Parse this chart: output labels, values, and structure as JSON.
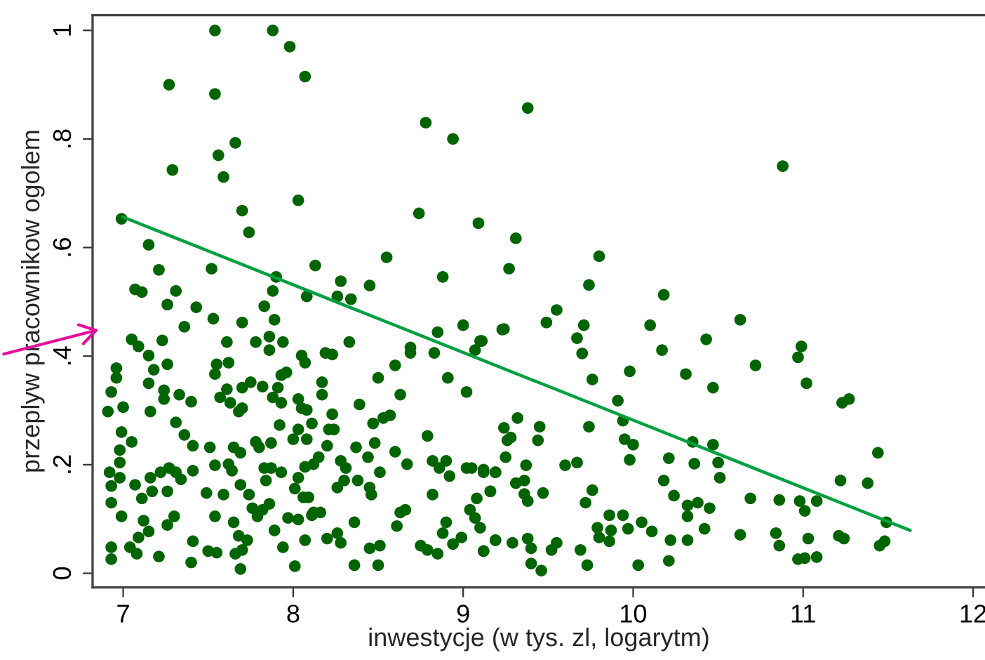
{
  "chart_data": {
    "type": "scatter",
    "xlabel": "inwestycje (w tys. zl, logarytm)",
    "ylabel": "przeplyw pracownikow ogolem",
    "xlim": [
      6.82,
      12.07
    ],
    "ylim": [
      -0.026,
      1.028
    ],
    "xticks": [
      7,
      8,
      9,
      10,
      11,
      12
    ],
    "yticks": [
      {
        "value": 0,
        "label": "0"
      },
      {
        "value": 0.2,
        "label": ".2"
      },
      {
        "value": 0.4,
        "label": ".4"
      },
      {
        "value": 0.6,
        "label": ".6"
      },
      {
        "value": 0.8,
        "label": ".8"
      },
      {
        "value": 1,
        "label": "1"
      }
    ],
    "grid": false,
    "series": [
      {
        "type": "scatter",
        "color": "#006400",
        "marker": "circle",
        "x": [
          6.99,
          7.54,
          7.88,
          7.98,
          8.07,
          7.27,
          7.54,
          7.66,
          7.56,
          7.29,
          7.59,
          8.03,
          7.7,
          7.74,
          7.15,
          8.78,
          8.94,
          8.74,
          9.09,
          8.55,
          8.13,
          7.52,
          7.21,
          8.88,
          7.9,
          7.07,
          7.11,
          7.31,
          7.88,
          8.28,
          8.45,
          8.08,
          8.26,
          8.34,
          7.26,
          7.43,
          7.83,
          9.38,
          10.88,
          9.31,
          9.8,
          9.27,
          9.74,
          10.18,
          9.55,
          9.49,
          9.71,
          10.1,
          10.63,
          9.24,
          10.43,
          10.17,
          10.99,
          10.97,
          10.72,
          10.31,
          10.47,
          11.02,
          11.23,
          11.27,
          9.98,
          9.76,
          9.7,
          9.67,
          9.91,
          9.94,
          9.74,
          9.95,
          10.0,
          10.35,
          10.47,
          9.98,
          10.21,
          10.36,
          10.5,
          10.51,
          10.18,
          9.6,
          9.67,
          11.44,
          11.22,
          11.38,
          11.49,
          11.08,
          10.98,
          11.01,
          10.86,
          10.69,
          10.24,
          10.32,
          10.38,
          10.45,
          10.32,
          10.42,
          10.63,
          10.84,
          10.86,
          11.03,
          11.21,
          11.24,
          11.45,
          11.48,
          10.97,
          11.01,
          11.08,
          10.03,
          10.21,
          10.32,
          10.22,
          10.11,
          10.05,
          9.94,
          9.86,
          9.79,
          9.87,
          9.8,
          9.86,
          9.97,
          9.72,
          9.76,
          9.69,
          9.73,
          9.52,
          9.55,
          9.4,
          9.38,
          9.4,
          9.46,
          9.29,
          9.19,
          9.12,
          9.47,
          9.38,
          9.36,
          9.36,
          9.31,
          9.37,
          9.16,
          9.12,
          9.19,
          9.25,
          9.26,
          9.28,
          9.24,
          9.32,
          9.45,
          9.44,
          9.11,
          7.05,
          7.09,
          7.15,
          7.23,
          6.96,
          6.96,
          6.93,
          6.91,
          7.0,
          7.15,
          7.18,
          7.26,
          7.24,
          7.24,
          7.16,
          7.33,
          7.4,
          7.31,
          7.36,
          7.41,
          6.99,
          7.05,
          6.98,
          6.98,
          6.92,
          6.98,
          6.93,
          6.93,
          7.07,
          7.11,
          7.16,
          7.17,
          7.22,
          7.27,
          7.31,
          7.34,
          7.26,
          7.41,
          6.99,
          7.12,
          7.15,
          7.09,
          7.04,
          7.08,
          6.93,
          6.93,
          7.21,
          7.26,
          7.3,
          7.41,
          7.4,
          7.5,
          7.49,
          7.54,
          7.59,
          7.55,
          7.65,
          7.68,
          7.66,
          7.69,
          7.7,
          7.73,
          7.69,
          7.74,
          7.76,
          7.79,
          7.82,
          7.86,
          7.84,
          7.89,
          7.94,
          7.97,
          8.01,
          8.03,
          8.01,
          8.06,
          8.09,
          8.07,
          8.11,
          8.12,
          8.16,
          8.2,
          8.26,
          8.28,
          8.36,
          8.36,
          8.45,
          8.51,
          8.5,
          8.63,
          8.61,
          8.66,
          8.75,
          8.79,
          8.85,
          8.88,
          8.9,
          8.94,
          8.99,
          8.82,
          9.04,
          9.07,
          9.1,
          9.12,
          9.19,
          9.16,
          9.08,
          7.93,
          8.03,
          8.07,
          8.12,
          8.15,
          8.2,
          8.21,
          8.24,
          8.23,
          8.28,
          8.31,
          8.26,
          8.3,
          8.38,
          8.37,
          8.44,
          8.48,
          8.47,
          8.53,
          8.57,
          8.6,
          8.67,
          8.51,
          8.45,
          8.46,
          8.79,
          8.82,
          8.86,
          8.9,
          8.92,
          9.02,
          9.05,
          9.12,
          9.19,
          7.53,
          7.36,
          7.7,
          7.89,
          7.61,
          7.78,
          7.86,
          7.86,
          7.94,
          8.05,
          8.07,
          8.19,
          8.23,
          8.33,
          7.55,
          7.62,
          7.54,
          7.61,
          7.7,
          7.75,
          7.82,
          7.91,
          7.93,
          7.96,
          7.57,
          7.63,
          7.7,
          7.68,
          7.88,
          7.93,
          8.03,
          8.05,
          8.08,
          8.17,
          8.17,
          8.39,
          8.5,
          8.6,
          8.63,
          8.69,
          8.69,
          8.85,
          8.83,
          8.91,
          9.0,
          9.02,
          9.1,
          9.07,
          9.23,
          7.78,
          7.8,
          7.87,
          7.65,
          7.69,
          7.51,
          7.54,
          7.62,
          7.64,
          7.83,
          7.87,
          7.92,
          8.0,
          8.03,
          8.08,
          8.11
        ],
        "values": [
          0.653,
          1.0,
          1.0,
          0.97,
          0.915,
          0.9,
          0.883,
          0.793,
          0.77,
          0.743,
          0.73,
          0.687,
          0.668,
          0.628,
          0.605,
          0.83,
          0.8,
          0.663,
          0.645,
          0.582,
          0.567,
          0.561,
          0.559,
          0.546,
          0.546,
          0.523,
          0.518,
          0.52,
          0.52,
          0.538,
          0.53,
          0.51,
          0.51,
          0.505,
          0.495,
          0.49,
          0.492,
          0.857,
          0.75,
          0.617,
          0.584,
          0.561,
          0.531,
          0.513,
          0.485,
          0.462,
          0.457,
          0.457,
          0.467,
          0.45,
          0.431,
          0.411,
          0.418,
          0.398,
          0.383,
          0.367,
          0.342,
          0.35,
          0.314,
          0.321,
          0.372,
          0.357,
          0.405,
          0.433,
          0.318,
          0.281,
          0.27,
          0.247,
          0.237,
          0.242,
          0.237,
          0.209,
          0.212,
          0.202,
          0.204,
          0.176,
          0.171,
          0.199,
          0.204,
          0.222,
          0.171,
          0.166,
          0.094,
          0.133,
          0.133,
          0.115,
          0.135,
          0.138,
          0.143,
          0.125,
          0.13,
          0.12,
          0.105,
          0.082,
          0.071,
          0.074,
          0.051,
          0.064,
          0.069,
          0.064,
          0.051,
          0.059,
          0.026,
          0.028,
          0.03,
          0.015,
          0.023,
          0.061,
          0.061,
          0.077,
          0.094,
          0.107,
          0.107,
          0.084,
          0.079,
          0.066,
          0.059,
          0.082,
          0.13,
          0.153,
          0.043,
          0.015,
          0.043,
          0.056,
          0.046,
          0.064,
          0.018,
          0.005,
          0.056,
          0.061,
          0.041,
          0.148,
          0.133,
          0.146,
          0.171,
          0.166,
          0.199,
          0.151,
          0.191,
          0.186,
          0.214,
          0.245,
          0.25,
          0.268,
          0.286,
          0.27,
          0.245,
          0.428,
          0.431,
          0.418,
          0.401,
          0.429,
          0.378,
          0.36,
          0.334,
          0.298,
          0.306,
          0.35,
          0.375,
          0.385,
          0.337,
          0.321,
          0.298,
          0.329,
          0.316,
          0.278,
          0.255,
          0.235,
          0.26,
          0.242,
          0.227,
          0.204,
          0.186,
          0.176,
          0.161,
          0.13,
          0.163,
          0.138,
          0.176,
          0.151,
          0.186,
          0.194,
          0.186,
          0.173,
          0.151,
          0.189,
          0.105,
          0.097,
          0.077,
          0.066,
          0.048,
          0.036,
          0.048,
          0.026,
          0.031,
          0.089,
          0.105,
          0.059,
          0.02,
          0.041,
          0.148,
          0.105,
          0.145,
          0.038,
          0.094,
          0.069,
          0.036,
          0.008,
          0.043,
          0.061,
          0.163,
          0.145,
          0.12,
          0.105,
          0.117,
          0.128,
          0.171,
          0.079,
          0.048,
          0.102,
          0.013,
          0.099,
          0.156,
          0.14,
          0.14,
          0.061,
          0.107,
          0.112,
          0.112,
          0.064,
          0.074,
          0.056,
          0.015,
          0.094,
          0.046,
          0.051,
          0.015,
          0.112,
          0.087,
          0.117,
          0.051,
          0.043,
          0.036,
          0.074,
          0.094,
          0.054,
          0.066,
          0.145,
          0.117,
          0.102,
          0.084,
          0.041,
          0.061,
          0.151,
          0.138,
          0.186,
          0.176,
          0.196,
          0.201,
          0.214,
          0.235,
          0.265,
          0.265,
          0.293,
          0.207,
          0.194,
          0.158,
          0.171,
          0.171,
          0.232,
          0.214,
          0.24,
          0.276,
          0.286,
          0.291,
          0.224,
          0.201,
          0.186,
          0.158,
          0.145,
          0.253,
          0.207,
          0.194,
          0.207,
          0.179,
          0.194,
          0.194,
          0.186,
          0.186,
          0.469,
          0.454,
          0.462,
          0.467,
          0.426,
          0.426,
          0.436,
          0.411,
          0.426,
          0.401,
          0.388,
          0.406,
          0.403,
          0.426,
          0.385,
          0.388,
          0.367,
          0.339,
          0.342,
          0.352,
          0.344,
          0.342,
          0.365,
          0.37,
          0.324,
          0.314,
          0.304,
          0.298,
          0.324,
          0.314,
          0.321,
          0.304,
          0.301,
          0.352,
          0.329,
          0.311,
          0.36,
          0.383,
          0.329,
          0.416,
          0.406,
          0.444,
          0.406,
          0.36,
          0.457,
          0.334,
          0.428,
          0.411,
          0.449,
          0.242,
          0.232,
          0.24,
          0.232,
          0.222,
          0.232,
          0.199,
          0.201,
          0.189,
          0.194,
          0.194,
          0.273,
          0.247,
          0.265,
          0.247,
          0.276
        ]
      },
      {
        "type": "line",
        "color": "#00a040",
        "x": [
          7.0,
          11.63
        ],
        "values": [
          0.656,
          0.079
        ]
      }
    ]
  }
}
